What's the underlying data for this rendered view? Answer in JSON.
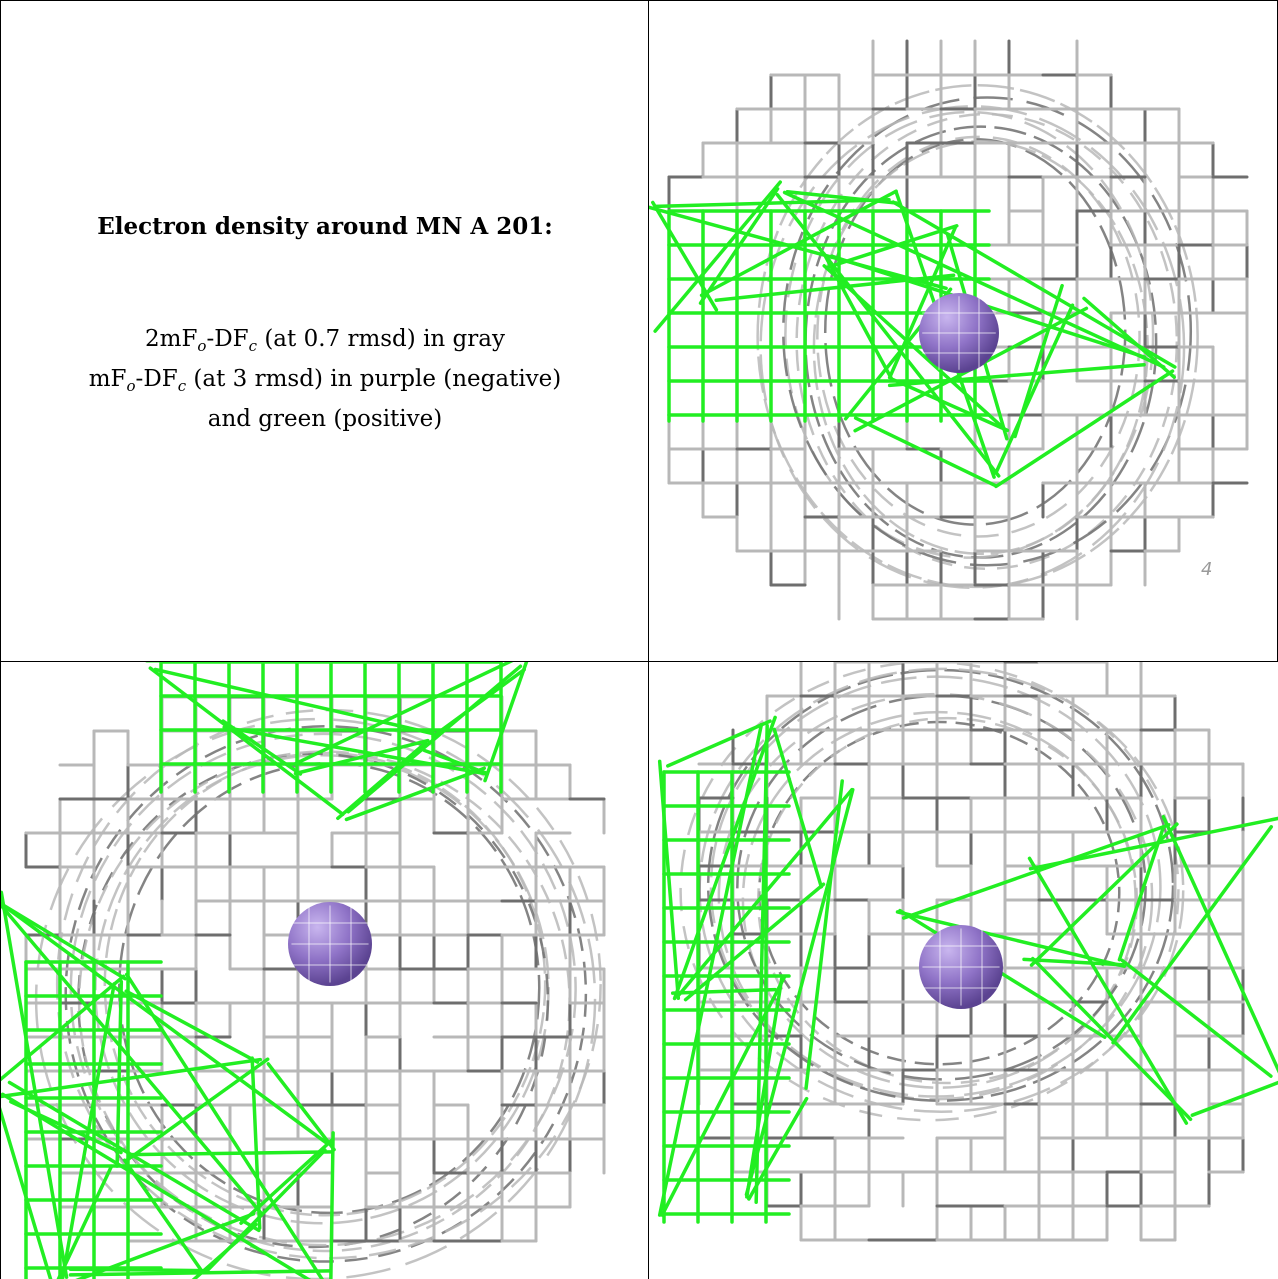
{
  "title": "Electron density around MN A 201:",
  "legend": {
    "line1": {
      "pre": "2mF",
      "s1": "o",
      "mid": "-DF",
      "s2": "c",
      "post": " (at 0.7 rmsd) in gray"
    },
    "line2": {
      "pre": "mF",
      "s1": "o",
      "mid": "-DF",
      "s2": "c",
      "post": " (at 3 rmsd) in purple (negative)"
    },
    "line3": "and green (positive)"
  },
  "colors": {
    "gray_mesh": "#b8b8b8",
    "dark_mesh": "#6e6e6e",
    "green_mesh": "#22ee22",
    "atom": "#8f73c7",
    "border": "#000000"
  },
  "axis_glyph": "4",
  "panels": [
    {
      "name": "view-top-right",
      "atom": "MN A 201"
    },
    {
      "name": "view-bottom-left",
      "atom": "MN A 201"
    },
    {
      "name": "view-bottom-right",
      "atom": "MN A 201"
    }
  ]
}
